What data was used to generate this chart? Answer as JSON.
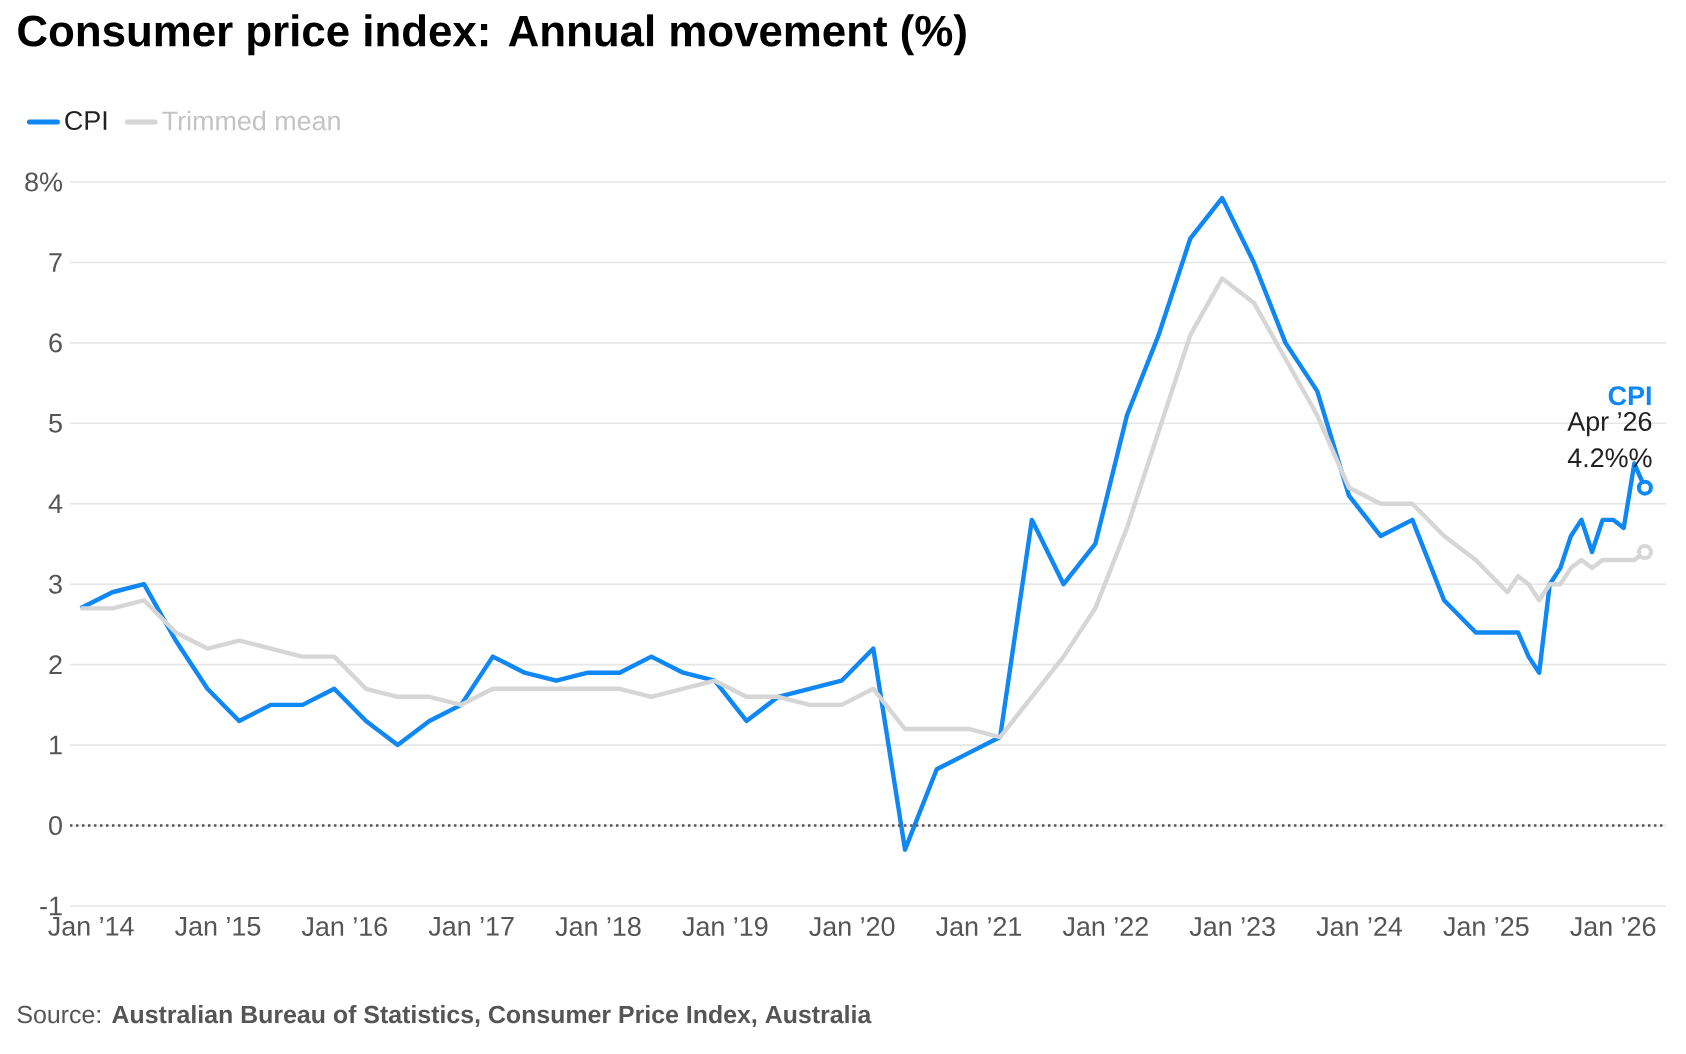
{
  "chart_data": {
    "type": "line",
    "title": "Consumer price index: Annual movement (%)",
    "x": [
      "2013-12",
      "2014-03",
      "2014-06",
      "2014-09",
      "2014-12",
      "2015-03",
      "2015-06",
      "2015-09",
      "2015-12",
      "2016-03",
      "2016-06",
      "2016-09",
      "2016-12",
      "2017-03",
      "2017-06",
      "2017-09",
      "2017-12",
      "2018-03",
      "2018-06",
      "2018-09",
      "2018-12",
      "2019-03",
      "2019-06",
      "2019-09",
      "2019-12",
      "2020-03",
      "2020-06",
      "2020-09",
      "2020-12",
      "2021-03",
      "2021-06",
      "2021-09",
      "2021-12",
      "2022-03",
      "2022-06",
      "2022-09",
      "2022-12",
      "2023-03",
      "2023-06",
      "2023-09",
      "2023-12",
      "2024-03",
      "2024-06",
      "2024-09",
      "2024-12",
      "2025-03",
      "2025-04",
      "2025-05",
      "2025-06",
      "2025-07",
      "2025-08",
      "2025-09",
      "2025-10",
      "2025-11",
      "2025-12",
      "2026-01",
      "2026-02",
      "2026-03",
      "2026-04"
    ],
    "series": [
      {
        "name": "CPI",
        "color": "#0f87f5",
        "values": [
          2.7,
          2.9,
          3.0,
          2.3,
          1.7,
          1.3,
          1.5,
          1.5,
          1.7,
          1.3,
          1.0,
          1.3,
          1.5,
          2.1,
          1.9,
          1.8,
          1.9,
          1.9,
          2.1,
          1.9,
          1.8,
          1.3,
          1.6,
          1.7,
          1.8,
          2.2,
          -0.3,
          0.7,
          0.9,
          1.1,
          3.8,
          3.0,
          3.5,
          5.1,
          6.1,
          7.3,
          7.8,
          7.0,
          6.0,
          5.4,
          4.1,
          3.6,
          3.8,
          2.8,
          2.4,
          2.4,
          2.4,
          2.1,
          1.9,
          3.0,
          3.2,
          3.6,
          3.8,
          3.4,
          3.8,
          3.8,
          3.7,
          4.5,
          4.2
        ]
      },
      {
        "name": "Trimmed mean",
        "color": "#d6d6d6",
        "values": [
          2.7,
          2.7,
          2.8,
          2.4,
          2.2,
          2.3,
          2.2,
          2.1,
          2.1,
          1.7,
          1.6,
          1.6,
          1.5,
          1.7,
          1.7,
          1.7,
          1.7,
          1.7,
          1.6,
          1.7,
          1.8,
          1.6,
          1.6,
          1.5,
          1.5,
          1.7,
          1.2,
          1.2,
          1.2,
          1.1,
          1.6,
          2.1,
          2.7,
          3.7,
          4.9,
          6.1,
          6.8,
          6.5,
          5.8,
          5.1,
          4.2,
          4.0,
          4.0,
          3.6,
          3.3,
          2.9,
          3.1,
          3.0,
          2.8,
          3.0,
          3.0,
          3.2,
          3.3,
          3.2,
          3.3,
          3.3,
          3.3,
          3.3,
          3.4
        ]
      }
    ],
    "xlim": [
      "2013-11",
      "2026-06"
    ],
    "xticks": [
      {
        "value": "2014-01",
        "label": "Jan ’14"
      },
      {
        "value": "2015-01",
        "label": "Jan ’15"
      },
      {
        "value": "2016-01",
        "label": "Jan ’16"
      },
      {
        "value": "2017-01",
        "label": "Jan ’17"
      },
      {
        "value": "2018-01",
        "label": "Jan ’18"
      },
      {
        "value": "2019-01",
        "label": "Jan ’19"
      },
      {
        "value": "2020-01",
        "label": "Jan ’20"
      },
      {
        "value": "2021-01",
        "label": "Jan ’21"
      },
      {
        "value": "2022-01",
        "label": "Jan ’22"
      },
      {
        "value": "2023-01",
        "label": "Jan ’23"
      },
      {
        "value": "2024-01",
        "label": "Jan ’24"
      },
      {
        "value": "2025-01",
        "label": "Jan ’25"
      },
      {
        "value": "2026-01",
        "label": "Jan ’26"
      }
    ],
    "ylim": [
      -1,
      8
    ],
    "yticks": [
      -1,
      0,
      1,
      2,
      3,
      4,
      5,
      6,
      7,
      {
        "value": 8,
        "label": "8%"
      }
    ],
    "grid": "y",
    "legend": "top left",
    "line_style": "solid",
    "ref_lines": [
      {
        "axis": "y",
        "value": 0,
        "color": "#555555",
        "line_style": "dotted"
      }
    ],
    "annotations": [
      "**CPI**",
      {
        "text": "Apr ’26",
        "x": "2026-04",
        "y": 4.2
      },
      {
        "text": "4.2%%",
        "x": "2026-04",
        "y": 4.2
      },
      "Source: **Australian Bureau of Statistics, Consumer Price Index, Australia**"
    ]
  }
}
